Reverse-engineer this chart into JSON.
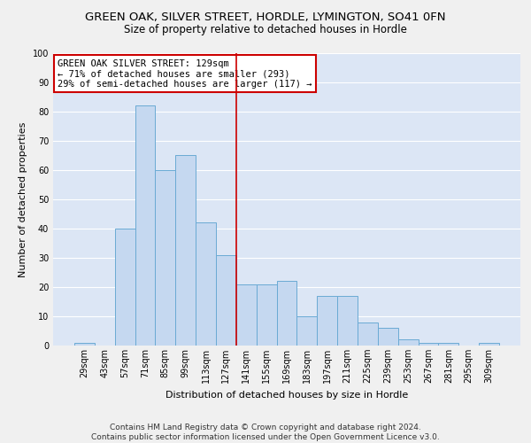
{
  "title": "GREEN OAK, SILVER STREET, HORDLE, LYMINGTON, SO41 0FN",
  "subtitle": "Size of property relative to detached houses in Hordle",
  "xlabel": "Distribution of detached houses by size in Hordle",
  "ylabel": "Number of detached properties",
  "categories": [
    "29sqm",
    "43sqm",
    "57sqm",
    "71sqm",
    "85sqm",
    "99sqm",
    "113sqm",
    "127sqm",
    "141sqm",
    "155sqm",
    "169sqm",
    "183sqm",
    "197sqm",
    "211sqm",
    "225sqm",
    "239sqm",
    "253sqm",
    "267sqm",
    "281sqm",
    "295sqm",
    "309sqm"
  ],
  "values": [
    1,
    0,
    40,
    82,
    60,
    65,
    42,
    31,
    21,
    21,
    22,
    10,
    17,
    17,
    8,
    6,
    2,
    1,
    1,
    0,
    1
  ],
  "bar_color": "#c5d8f0",
  "bar_edge_color": "#6aaad4",
  "plot_bg_color": "#dce6f5",
  "fig_bg_color": "#f0f0f0",
  "grid_color": "#ffffff",
  "vline_color": "#cc0000",
  "vline_index": 7,
  "annotation_text": "GREEN OAK SILVER STREET: 129sqm\n← 71% of detached houses are smaller (293)\n29% of semi-detached houses are larger (117) →",
  "annotation_box_color": "#ffffff",
  "annotation_box_edge": "#cc0000",
  "footer": "Contains HM Land Registry data © Crown copyright and database right 2024.\nContains public sector information licensed under the Open Government Licence v3.0.",
  "ylim": [
    0,
    100
  ],
  "yticks": [
    0,
    10,
    20,
    30,
    40,
    50,
    60,
    70,
    80,
    90,
    100
  ],
  "title_fontsize": 9.5,
  "subtitle_fontsize": 8.5,
  "axis_label_fontsize": 8,
  "tick_fontsize": 7,
  "annotation_fontsize": 7.5,
  "footer_fontsize": 6.5
}
